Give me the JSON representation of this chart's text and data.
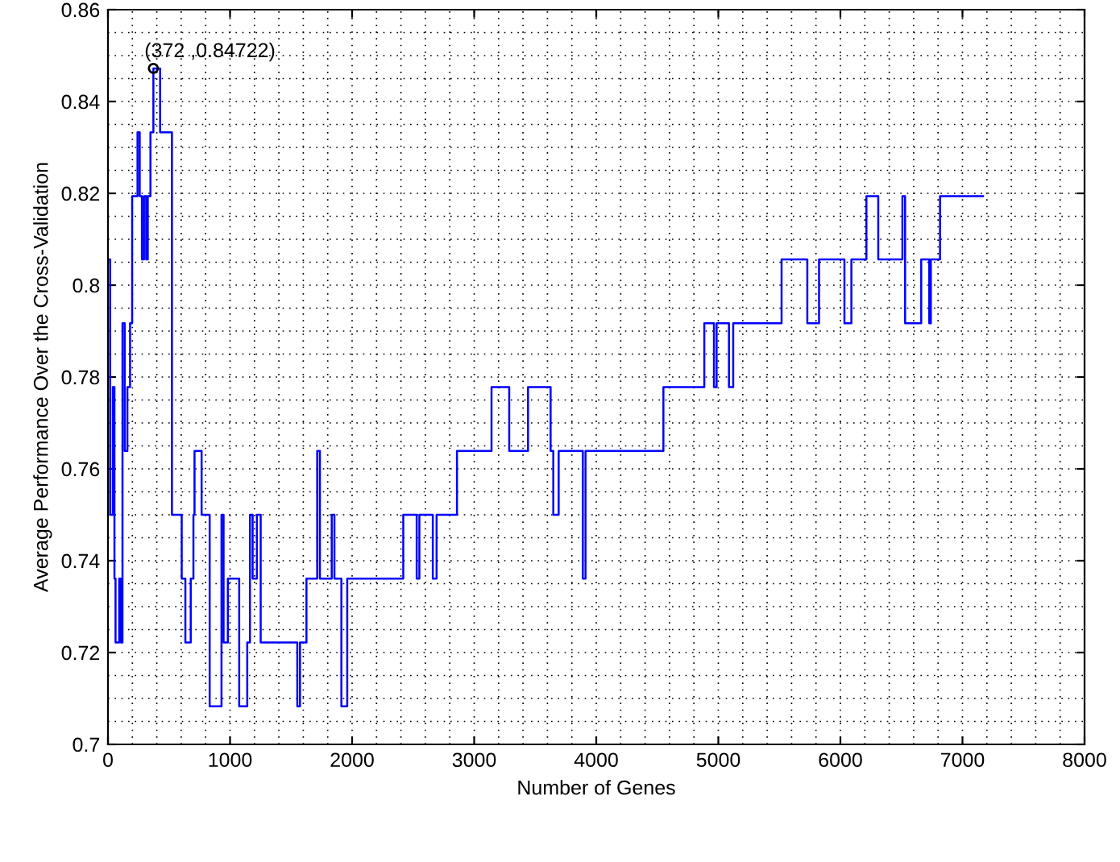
{
  "chart_data": {
    "type": "step",
    "xlabel": "Number of Genes",
    "ylabel": "Average Performance Over the Cross-Validation",
    "xlim": [
      0,
      8000
    ],
    "ylim": [
      0.7,
      0.86
    ],
    "xticks": [
      0,
      1000,
      2000,
      3000,
      4000,
      5000,
      6000,
      7000,
      8000
    ],
    "yticks": [
      0.7,
      0.72,
      0.74,
      0.76,
      0.78,
      0.8,
      0.82,
      0.84,
      0.86
    ],
    "grid": true,
    "marker": "none",
    "line_style": "solid",
    "series": [
      {
        "color": "#0000ff",
        "x": [
          4,
          18,
          40,
          53,
          62,
          92,
          106,
          119,
          137,
          159,
          181,
          198,
          242,
          260,
          278,
          295,
          313,
          326,
          348,
          372,
          427,
          524,
          604,
          634,
          678,
          700,
          709,
          767,
          833,
          930,
          947,
          982,
          1075,
          1141,
          1163,
          1185,
          1220,
          1251,
          1551,
          1573,
          1626,
          1714,
          1736,
          1833,
          1855,
          1912,
          1960,
          2419,
          2529,
          2551,
          2661,
          2692,
          2859,
          3142,
          3287,
          3441,
          3626,
          3648,
          3692,
          3890,
          3912,
          4550,
          4885,
          4964,
          4986,
          5087,
          5122,
          5518,
          5729,
          5825,
          6033,
          6090,
          6213,
          6310,
          6508,
          6530,
          6662,
          6728,
          6741,
          6816,
          7168
        ],
        "values": [
          0.8056,
          0.75,
          0.7778,
          0.7361,
          0.7222,
          0.7361,
          0.7222,
          0.7917,
          0.7639,
          0.7778,
          0.7917,
          0.8194,
          0.8333,
          0.8194,
          0.8056,
          0.8194,
          0.8056,
          0.8194,
          0.8333,
          0.8472,
          0.8333,
          0.75,
          0.7361,
          0.7222,
          0.7361,
          0.75,
          0.7639,
          0.75,
          0.7083,
          0.75,
          0.7222,
          0.7361,
          0.7083,
          0.7222,
          0.75,
          0.7361,
          0.75,
          0.7222,
          0.7083,
          0.7222,
          0.7361,
          0.7639,
          0.7361,
          0.75,
          0.7361,
          0.7083,
          0.7361,
          0.75,
          0.7361,
          0.75,
          0.7361,
          0.75,
          0.7639,
          0.7778,
          0.7639,
          0.7778,
          0.7639,
          0.75,
          0.7639,
          0.7361,
          0.7639,
          0.7778,
          0.7917,
          0.7778,
          0.7917,
          0.7778,
          0.7917,
          0.8056,
          0.7917,
          0.8056,
          0.7917,
          0.8056,
          0.8194,
          0.8056,
          0.8194,
          0.7917,
          0.8056,
          0.7917,
          0.8056,
          0.8194,
          0.8194
        ]
      }
    ],
    "annotations": [
      {
        "text": "(372 ,0.84722)",
        "x": 372,
        "y": 0.84722
      }
    ]
  }
}
